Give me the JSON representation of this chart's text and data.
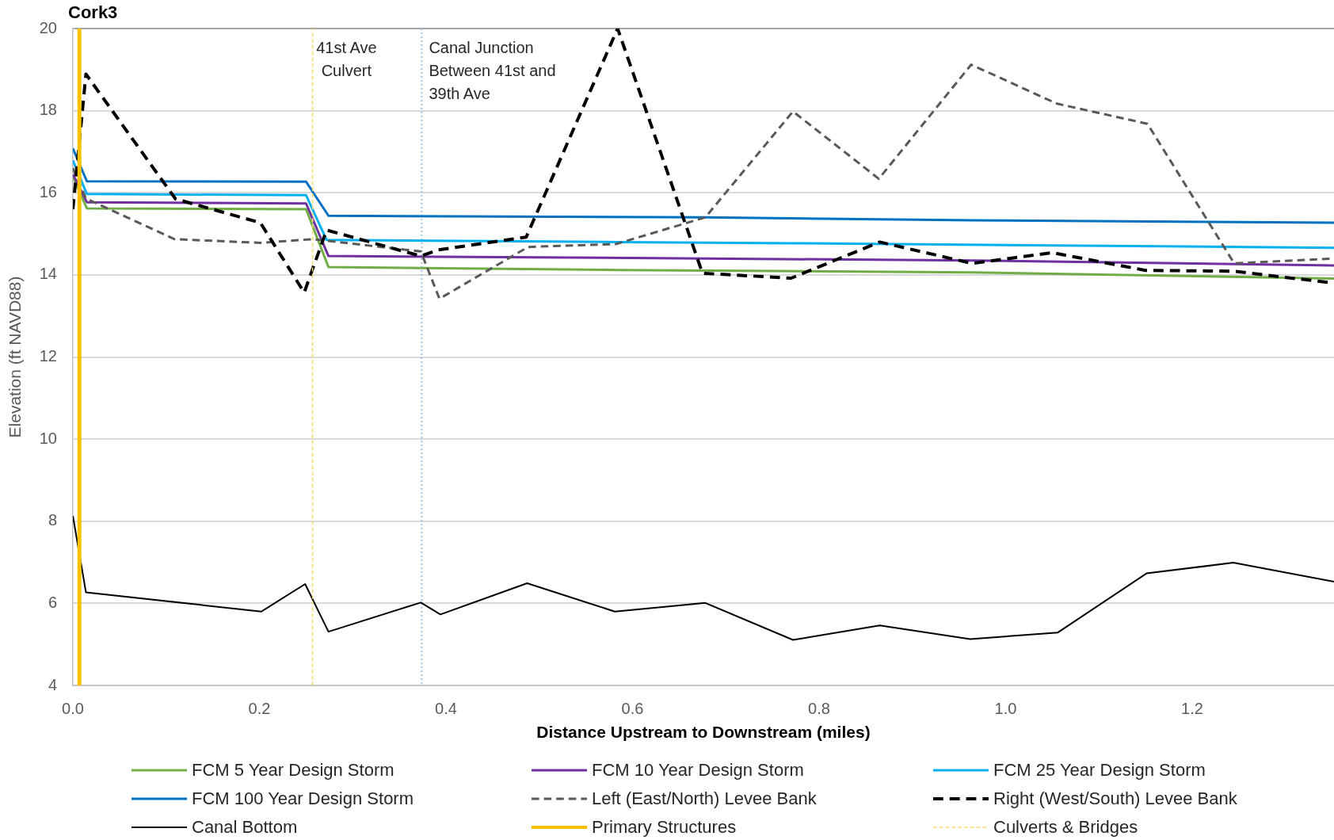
{
  "chart_data": {
    "type": "line",
    "title": "Cork3",
    "xlabel": "Distance Upstream to Downstream (miles)",
    "ylabel": "Elevation (ft NAVD88)",
    "xlim": [
      0,
      1.352
    ],
    "xticks": [
      {
        "value": 0,
        "label": "0.0"
      },
      0.2,
      0.4,
      0.6,
      0.8,
      {
        "value": 1,
        "label": "1.0"
      },
      1.2
    ],
    "ylim": [
      4,
      20
    ],
    "yticks": [
      4,
      6,
      8,
      10,
      12,
      14,
      16,
      18,
      20
    ],
    "grid": "y",
    "legend": "bottom",
    "series": [
      {
        "name": "FCM 5 Year Design Storm",
        "color": "#70ad47",
        "x": [
          0,
          0.015,
          0.25,
          0.274,
          0.584,
          0.964,
          1.352
        ],
        "values": [
          16.4,
          15.62,
          15.6,
          14.19,
          14.12,
          14.06,
          13.91
        ]
      },
      {
        "name": "FCM 10 Year Design Storm",
        "color": "#7030a0",
        "x": [
          0,
          0.015,
          0.25,
          0.274,
          0.678,
          0.964,
          1.352
        ],
        "values": [
          16.45,
          15.77,
          15.74,
          14.46,
          14.4,
          14.35,
          14.23
        ]
      },
      {
        "name": "FCM 25 Year Design Storm",
        "color": "#00b0f0",
        "x": [
          0,
          0.015,
          0.25,
          0.272,
          0.584,
          0.772,
          1.352
        ],
        "values": [
          16.79,
          15.97,
          15.94,
          14.85,
          14.8,
          14.77,
          14.66
        ]
      },
      {
        "name": "FCM 100 Year Design Storm",
        "color": "#0070c0",
        "x": [
          0,
          0.015,
          0.25,
          0.274,
          0.678,
          0.964,
          1.352
        ],
        "values": [
          17.08,
          16.28,
          16.27,
          15.44,
          15.4,
          15.33,
          15.27
        ]
      },
      {
        "name": "Left (East/North) Levee Bank",
        "color": "#595959",
        "line_style": "dashed",
        "x": [
          0,
          0.014,
          0.109,
          0.201,
          0.257,
          0.373,
          0.393,
          0.488,
          0.582,
          0.678,
          0.772,
          0.864,
          0.963,
          1.055,
          1.152,
          1.245,
          1.352
        ],
        "values": [
          16.6,
          15.86,
          14.87,
          14.78,
          14.87,
          14.57,
          13.42,
          14.68,
          14.75,
          15.4,
          17.98,
          16.34,
          19.12,
          18.17,
          17.68,
          14.28,
          14.4
        ]
      },
      {
        "name": "Right (West/South) Levee Bank",
        "color": "#000000",
        "line_style": "dashed",
        "x": [
          0,
          0.014,
          0.11,
          0.201,
          0.248,
          0.272,
          0.373,
          0.392,
          0.486,
          0.584,
          0.675,
          0.77,
          0.865,
          0.964,
          1.05,
          1.15,
          1.244,
          1.352
        ],
        "values": [
          15.6,
          18.89,
          15.85,
          15.27,
          13.57,
          15.09,
          14.46,
          14.61,
          14.92,
          20.0,
          14.04,
          13.92,
          14.8,
          14.28,
          14.54,
          14.11,
          14.09,
          13.8
        ]
      },
      {
        "name": "Canal Bottom",
        "color": "#000000",
        "x": [
          0,
          0.014,
          0.202,
          0.249,
          0.274,
          0.373,
          0.394,
          0.487,
          0.581,
          0.678,
          0.772,
          0.865,
          0.962,
          1.056,
          1.151,
          1.244,
          1.352
        ],
        "values": [
          8.13,
          6.27,
          5.8,
          6.47,
          5.31,
          6.02,
          5.73,
          6.49,
          5.8,
          6.01,
          5.11,
          5.46,
          5.13,
          5.29,
          6.73,
          6.99,
          6.53
        ]
      },
      {
        "name": "Primary Structures",
        "color": "#ffc000",
        "x": [
          0.007,
          0.007
        ],
        "values": [
          4,
          20
        ]
      },
      {
        "name": "Culverts & Bridges",
        "color": "#ffd966",
        "line_style": "dashed",
        "x": [
          0.257,
          0.257
        ],
        "values": [
          4,
          20
        ]
      }
    ],
    "ref_lines": [
      {
        "axis": "x",
        "value": 0.374,
        "label": "Canal Junction\nBetween 41st and\n39th Ave",
        "color": "#9dc3e6",
        "line_style": "dotted"
      }
    ],
    "annotations": [
      {
        "text": "41st Ave\nCulvert",
        "x": 0.257,
        "y": 19.5
      }
    ]
  }
}
